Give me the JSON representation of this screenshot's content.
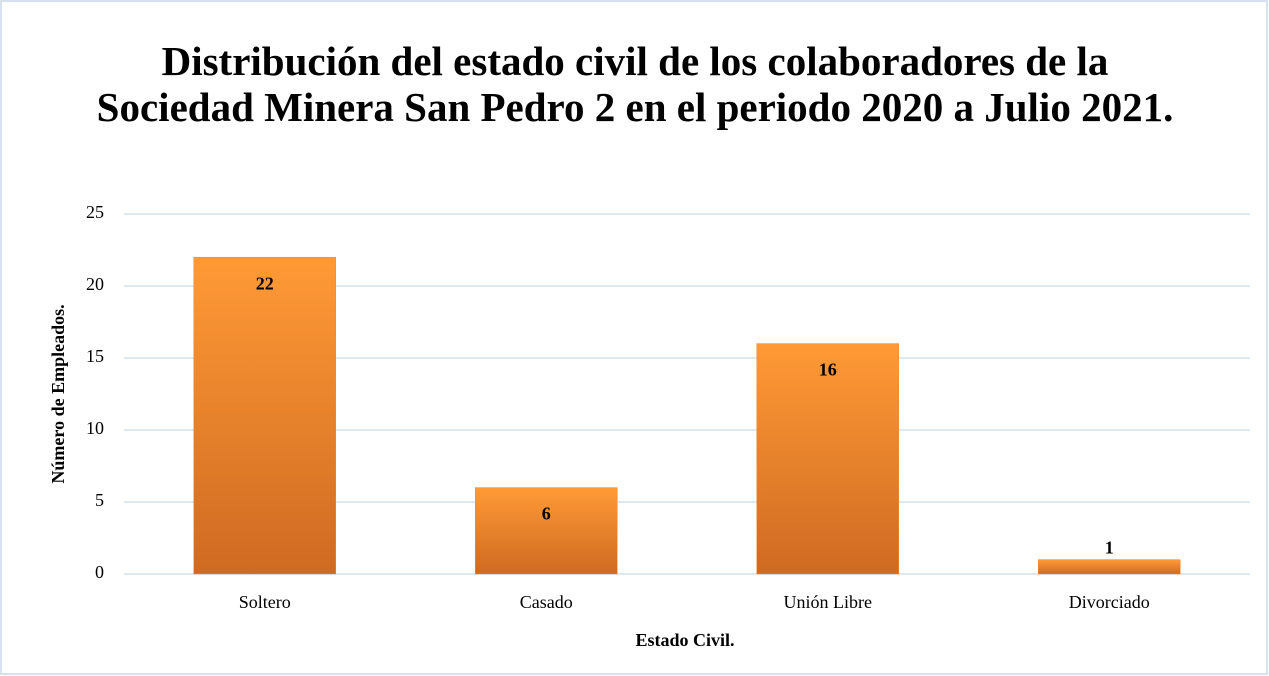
{
  "chart_data": {
    "type": "bar",
    "title": "Distribución del estado civil de los colaboradores de la Sociedad Minera San Pedro 2 en el periodo 2020 a Julio 2021.",
    "x_label": "Estado Civil.",
    "y_label": "Número de Empleados.",
    "categories": [
      "Soltero",
      "Casado",
      "Unión Libre",
      "Divorciado"
    ],
    "values": [
      22,
      6,
      16,
      1
    ],
    "color": "#f28a2e",
    "ylim": [
      0,
      25
    ],
    "yticks": [
      0,
      5,
      10,
      15,
      20,
      25
    ],
    "grid": true
  }
}
